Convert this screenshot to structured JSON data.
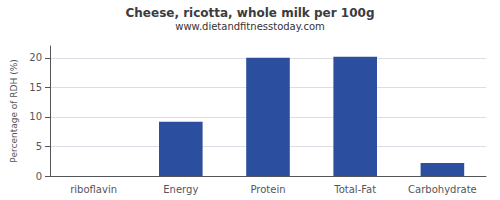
{
  "chart_data": {
    "type": "bar",
    "title": "Cheese, ricotta, whole milk per 100g",
    "subtitle": "www.dietandfitnesstoday.com",
    "categories": [
      "riboflavin",
      "Energy",
      "Protein",
      "Total-Fat",
      "Carbohydrate"
    ],
    "values": [
      0,
      9.2,
      20.0,
      20.2,
      2.2
    ],
    "color": "#2b4f9e",
    "ylabel": "Percentage of RDH (%)",
    "ylim": [
      0,
      22
    ],
    "yticks": [
      0,
      5,
      10,
      15,
      20
    ],
    "grid": true
  }
}
